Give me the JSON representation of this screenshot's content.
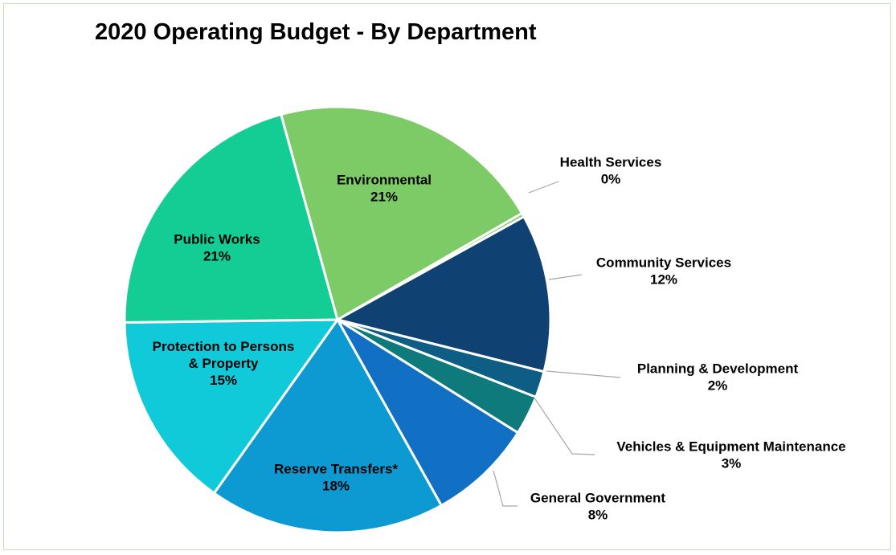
{
  "chart_data": {
    "type": "pie",
    "title": "2020 Operating Budget - By Department",
    "start_angle_deg": 60,
    "slices": [
      {
        "label": "Health Services",
        "value": 0.3,
        "percent_label": "0%",
        "color": "#7cc96b"
      },
      {
        "label": "Community Services",
        "value": 12,
        "percent_label": "12%",
        "color": "#0f4173"
      },
      {
        "label": "Planning & Development",
        "value": 2,
        "percent_label": "2%",
        "color": "#0d5d84"
      },
      {
        "label": "Vehicles & Equipment Maintenance",
        "value": 3,
        "percent_label": "3%",
        "color": "#0e7a7c"
      },
      {
        "label": "General Government",
        "value": 8,
        "percent_label": "8%",
        "color": "#1170c4"
      },
      {
        "label": "Reserve Transfers*",
        "value": 18,
        "percent_label": "18%",
        "color": "#0d9ad3"
      },
      {
        "label": "Protection to Persons\n& Property",
        "value": 15,
        "percent_label": "15%",
        "color": "#11cad9"
      },
      {
        "label": "Public Works",
        "value": 21,
        "percent_label": "21%",
        "color": "#13cd94"
      },
      {
        "label": "Environmental",
        "value": 21,
        "percent_label": "21%",
        "color": "#7dcb66"
      }
    ]
  }
}
